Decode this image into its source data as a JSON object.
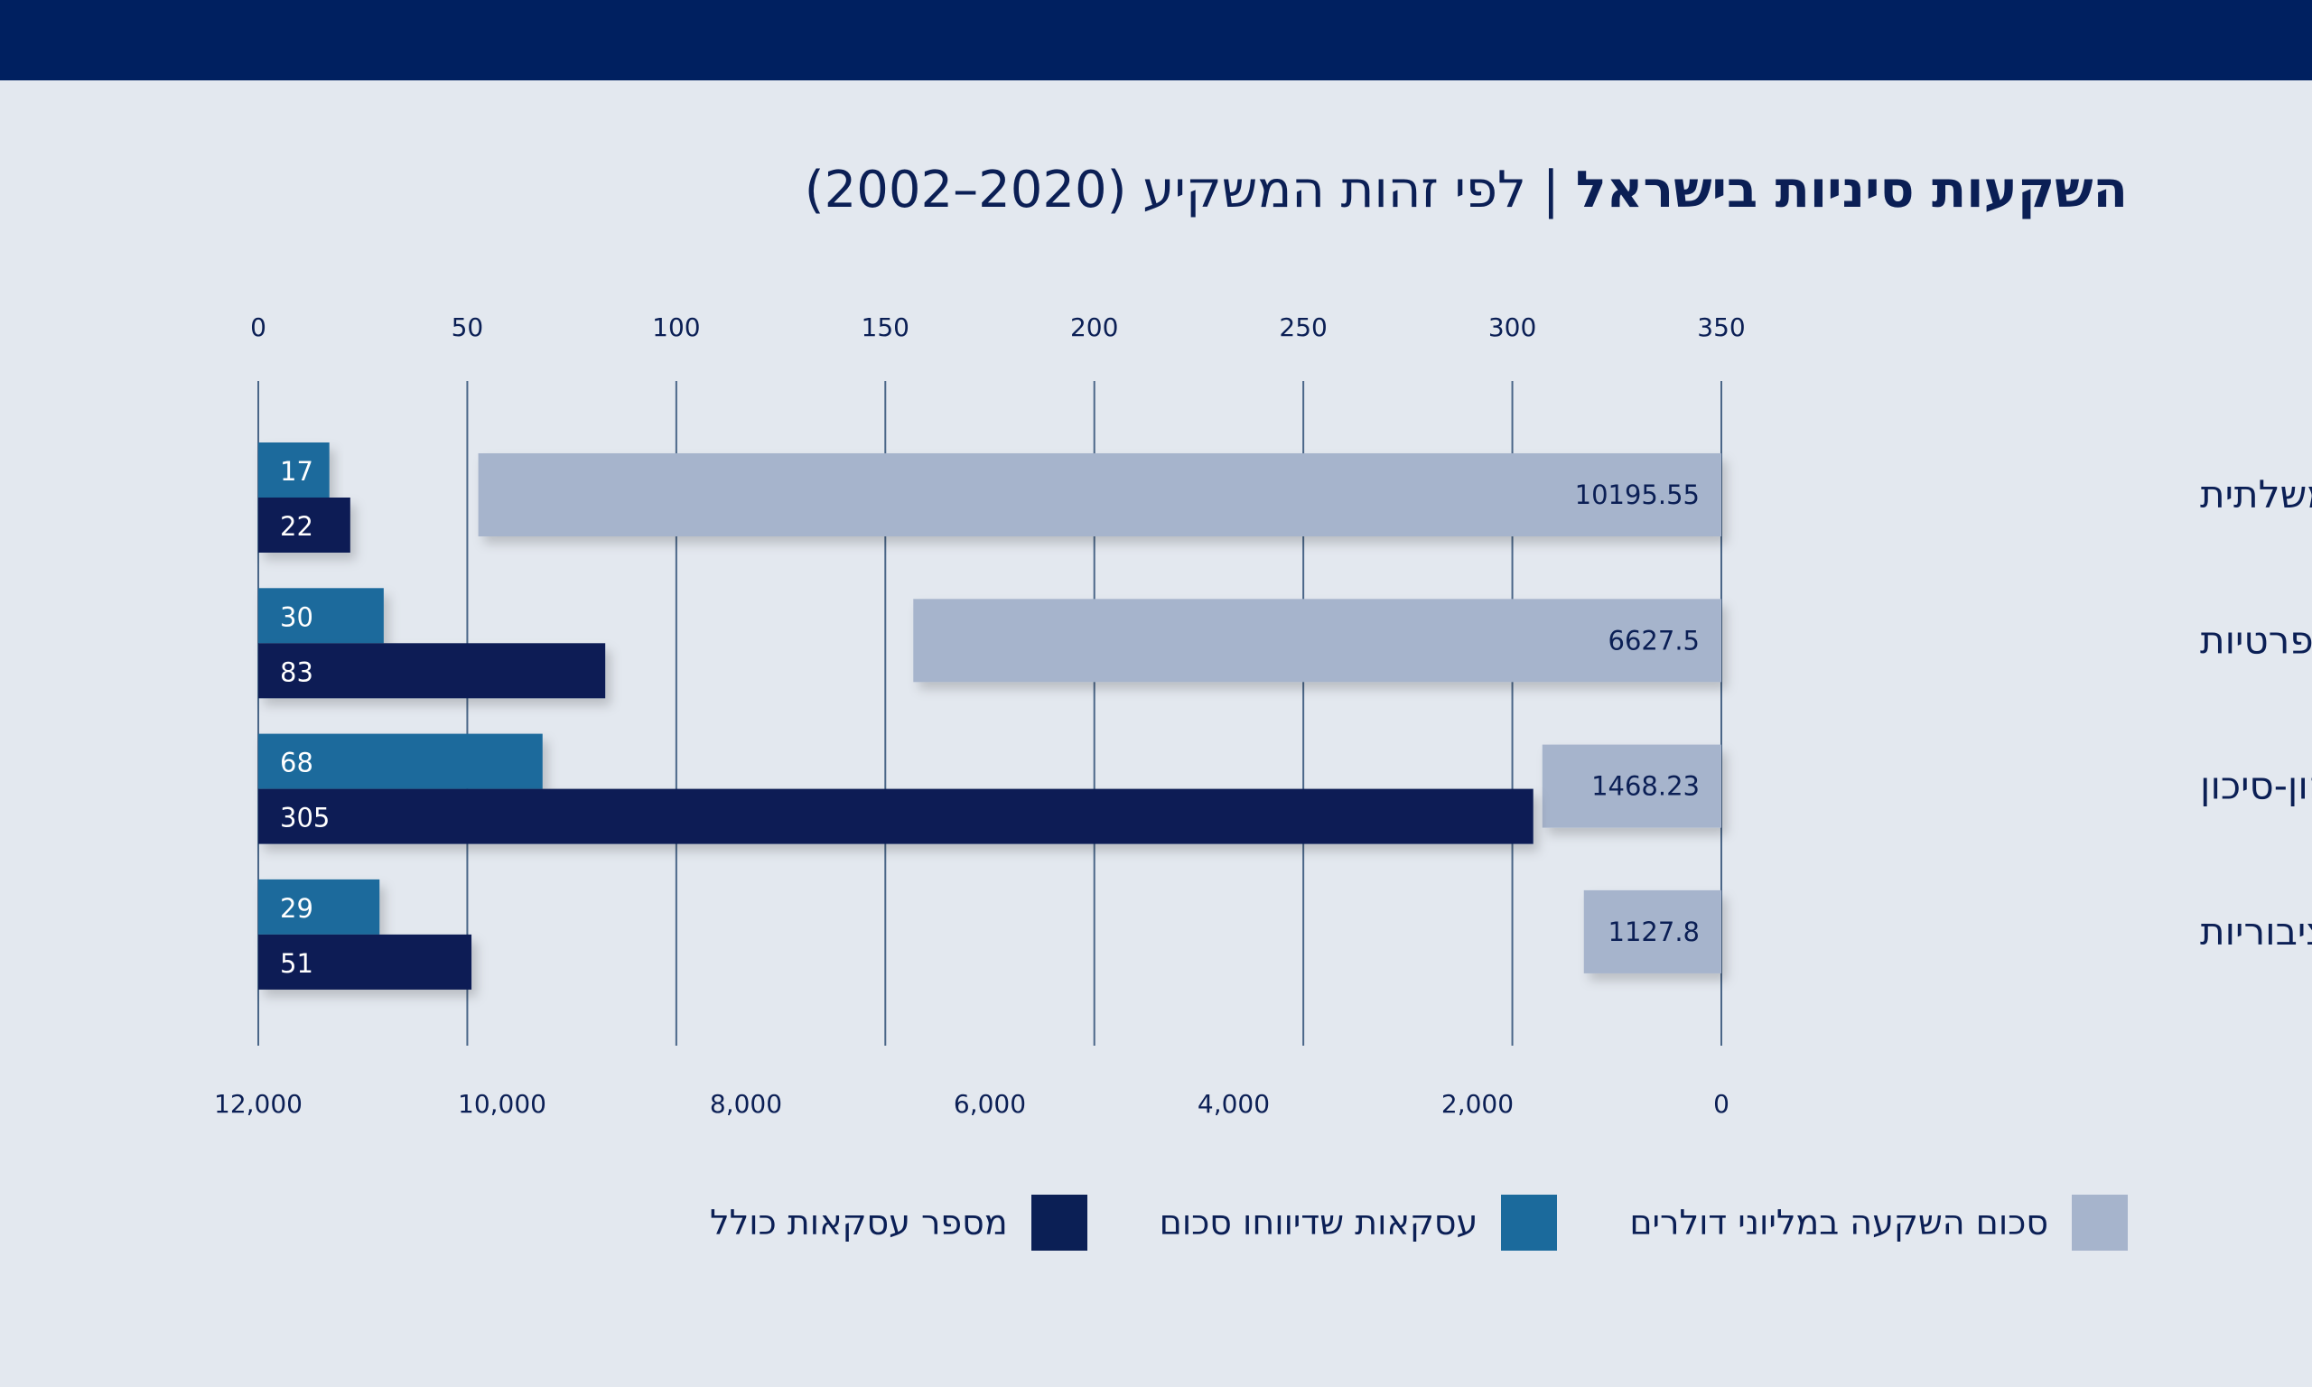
{
  "header": {
    "title_main": "השקעות סיניות בישראל",
    "separator": "|",
    "title_sub": "לפי זהות המשקיע (2020–2002)"
  },
  "colors": {
    "topbar": "#002060",
    "background": "#e3e8ef",
    "investment": "#a6b4cc",
    "reported": "#1b6a9c",
    "total": "#0b1f55",
    "gridline": "#4a6688"
  },
  "chart_data": {
    "type": "bar",
    "orientation": "horizontal",
    "categories": [
      "חברות בבעלות ממשלתית",
      "חברות פרטיות",
      "קרנות הון-סיכון",
      "חברות ציבוריות"
    ],
    "series": [
      {
        "name": "סכום השקעה במליוני דולרים",
        "axis": "bottom",
        "values": [
          10195.55,
          6627.5,
          1468.23,
          1127.8
        ],
        "labels": [
          "10195.55",
          "6627.5",
          "1468.23",
          "1127.8"
        ]
      },
      {
        "name": "עסקאות שדיווחו סכום",
        "axis": "top",
        "values": [
          17,
          30,
          68,
          29
        ],
        "labels": [
          "17",
          "30",
          "68",
          "29"
        ]
      },
      {
        "name": "מספר עסקאות כולל",
        "axis": "top",
        "values": [
          22,
          83,
          305,
          51
        ],
        "labels": [
          "22",
          "83",
          "305",
          "51"
        ]
      }
    ],
    "top_axis": {
      "range": [
        0,
        350
      ],
      "direction": "left-to-right",
      "ticks": [
        "0",
        "50",
        "100",
        "150",
        "200",
        "250",
        "300",
        "350"
      ]
    },
    "bottom_axis": {
      "range": [
        0,
        12000
      ],
      "direction": "right-to-left",
      "ticks": [
        "12,000",
        "10,000",
        "8,000",
        "6,000",
        "4,000",
        "2,000",
        "0"
      ]
    },
    "grid": true,
    "legend_position": "bottom"
  }
}
